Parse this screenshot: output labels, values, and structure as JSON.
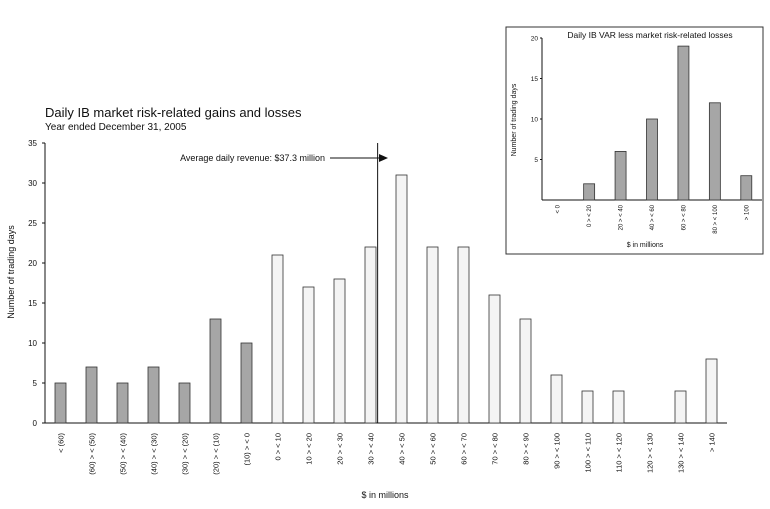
{
  "colors": {
    "loss_bar": "#a6a6a6",
    "gain_bar": "#f4f4f4",
    "inset_bar": "#a6a6a6",
    "bar_stroke": "#333333"
  },
  "chart_data": [
    {
      "type": "bar",
      "title": "Daily IB market risk-related gains and losses",
      "subtitle": "Year ended December 31, 2005",
      "xlabel": "$ in millions",
      "ylabel": "Number of trading days",
      "ylim": [
        0,
        35
      ],
      "yticks": [
        0,
        5,
        10,
        15,
        20,
        25,
        30,
        35
      ],
      "categories": [
        "< (60)",
        "(60) > < (50)",
        "(50) > < (40)",
        "(40) > < (30)",
        "(30) > < (20)",
        "(20) > < (10)",
        "(10) > < 0",
        "0 > < 10",
        "10 > < 20",
        "20 > < 30",
        "30 > < 40",
        "40 > < 50",
        "50 > < 60",
        "60 > < 70",
        "70 > < 80",
        "80 > < 90",
        "90 > < 100",
        "100 > < 110",
        "110 > < 120",
        "120 > < 130",
        "130 > < 140",
        "> 140"
      ],
      "values": [
        5,
        7,
        5,
        7,
        5,
        13,
        10,
        21,
        17,
        18,
        22,
        31,
        22,
        22,
        16,
        13,
        6,
        4,
        4,
        0,
        4,
        8
      ],
      "loss_category_count": 7,
      "annotation": "Average daily revenue: $37.3 million",
      "annotation_value_millions": 37.3
    },
    {
      "type": "bar",
      "title": "Daily IB VAR less market risk-related losses",
      "xlabel": "$ in millions",
      "ylabel": "Number of trading days",
      "ylim": [
        0,
        20
      ],
      "yticks": [
        5,
        10,
        15,
        20
      ],
      "categories": [
        "< 0",
        "0 > < 20",
        "20 > < 40",
        "40 > < 60",
        "60 > < 80",
        "80 > < 100",
        "> 100"
      ],
      "values": [
        0,
        2,
        6,
        10,
        19,
        12,
        3
      ]
    }
  ]
}
